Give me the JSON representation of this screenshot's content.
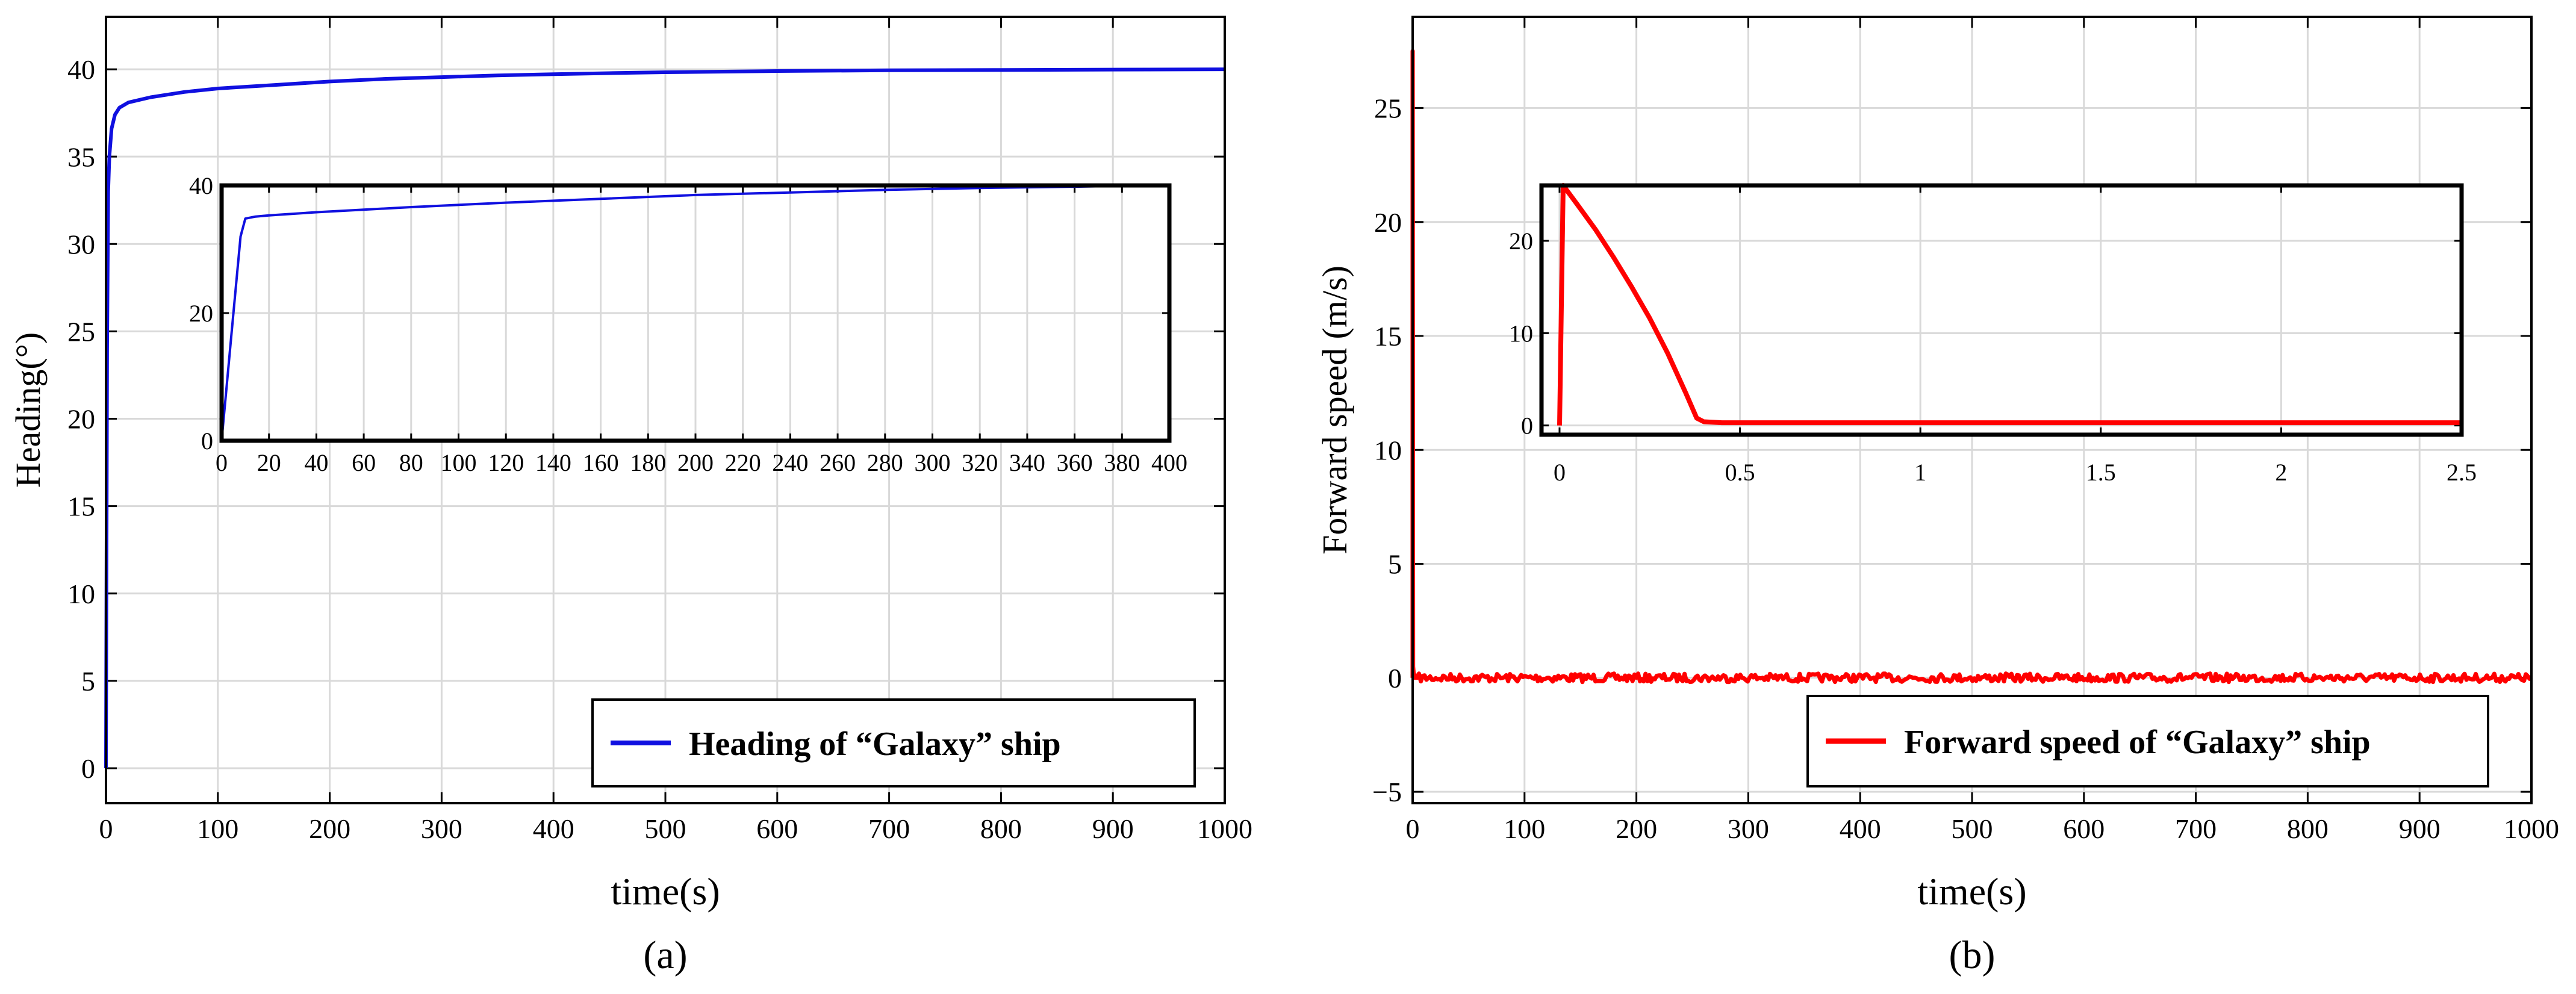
{
  "chart_data": [
    {
      "type": "line",
      "panel_label": "(a)",
      "xlabel": "time(s)",
      "ylabel": "Heading(°)",
      "xlim": [
        0,
        1000
      ],
      "ylim": [
        -2,
        43
      ],
      "xticks": [
        0,
        100,
        200,
        300,
        400,
        500,
        600,
        700,
        800,
        900,
        1000
      ],
      "yticks": [
        0,
        5,
        10,
        15,
        20,
        25,
        30,
        35,
        40
      ],
      "grid": true,
      "legend_position": "bottom-right",
      "series": [
        {
          "name": "Heading of “Galaxy” ship",
          "color": "#1010e0",
          "x": [
            0,
            0.5,
            1,
            2,
            3,
            5,
            8,
            12,
            20,
            40,
            70,
            100,
            150,
            200,
            250,
            300,
            350,
            400,
            450,
            500,
            600,
            700,
            800,
            900,
            1000
          ],
          "y": [
            0,
            12,
            24,
            33,
            35,
            36.6,
            37.4,
            37.8,
            38.1,
            38.4,
            38.7,
            38.9,
            39.1,
            39.3,
            39.45,
            39.55,
            39.65,
            39.72,
            39.78,
            39.83,
            39.9,
            39.94,
            39.96,
            39.98,
            40
          ]
        }
      ],
      "inset": {
        "xlim": [
          0,
          400
        ],
        "ylim": [
          0,
          40
        ],
        "xticks": [
          0,
          20,
          40,
          60,
          80,
          100,
          120,
          140,
          160,
          180,
          200,
          220,
          240,
          260,
          280,
          300,
          320,
          340,
          360,
          380,
          400
        ],
        "yticks": [
          0,
          20,
          40
        ],
        "series": [
          {
            "color": "#1010e0",
            "x": [
              0,
              2,
              4,
              6,
              8,
              10,
              14,
              20,
              40,
              80,
              120,
              160,
              200,
              240,
              280,
              320,
              360,
              390
            ],
            "y": [
              0,
              8,
              16,
              24,
              32,
              34.8,
              35.1,
              35.3,
              35.8,
              36.6,
              37.3,
              37.9,
              38.5,
              38.9,
              39.3,
              39.6,
              39.8,
              40
            ]
          }
        ]
      }
    },
    {
      "type": "line",
      "panel_label": "(b)",
      "xlabel": "time(s)",
      "ylabel": "Forward speed (m/s)",
      "xlim": [
        0,
        1000
      ],
      "ylim": [
        -5.5,
        29
      ],
      "xticks": [
        0,
        100,
        200,
        300,
        400,
        500,
        600,
        700,
        800,
        900,
        1000
      ],
      "yticks": [
        -5,
        0,
        5,
        10,
        15,
        20,
        25
      ],
      "grid": true,
      "legend_position": "bottom-right",
      "series": [
        {
          "name": "Forward speed of “Galaxy” ship",
          "color": "#ff0000",
          "x": [
            0,
            0.01,
            0.4,
            1,
            2,
            3,
            4,
            1000
          ],
          "y": [
            0,
            27.5,
            0.5,
            0.1,
            0,
            0.1,
            0,
            0
          ],
          "noise": 0.1
        }
      ],
      "inset": {
        "xlim": [
          -0.05,
          2.5
        ],
        "ylim": [
          -1,
          26
        ],
        "xticks": [
          0,
          0.5,
          1,
          1.5,
          2,
          2.5
        ],
        "yticks": [
          0,
          10,
          20
        ],
        "series": [
          {
            "color": "#ff0000",
            "x": [
              0,
              0.01,
              0.05,
              0.1,
              0.15,
              0.2,
              0.25,
              0.3,
              0.35,
              0.38,
              0.4,
              0.45,
              0.5,
              1,
              1.5,
              2,
              2.5
            ],
            "y": [
              0,
              26,
              23.9,
              21.2,
              18.2,
              15,
              11.6,
              7.8,
              3.5,
              0.8,
              0.4,
              0.3,
              0.3,
              0.3,
              0.3,
              0.3,
              0.3
            ]
          }
        ]
      }
    }
  ]
}
